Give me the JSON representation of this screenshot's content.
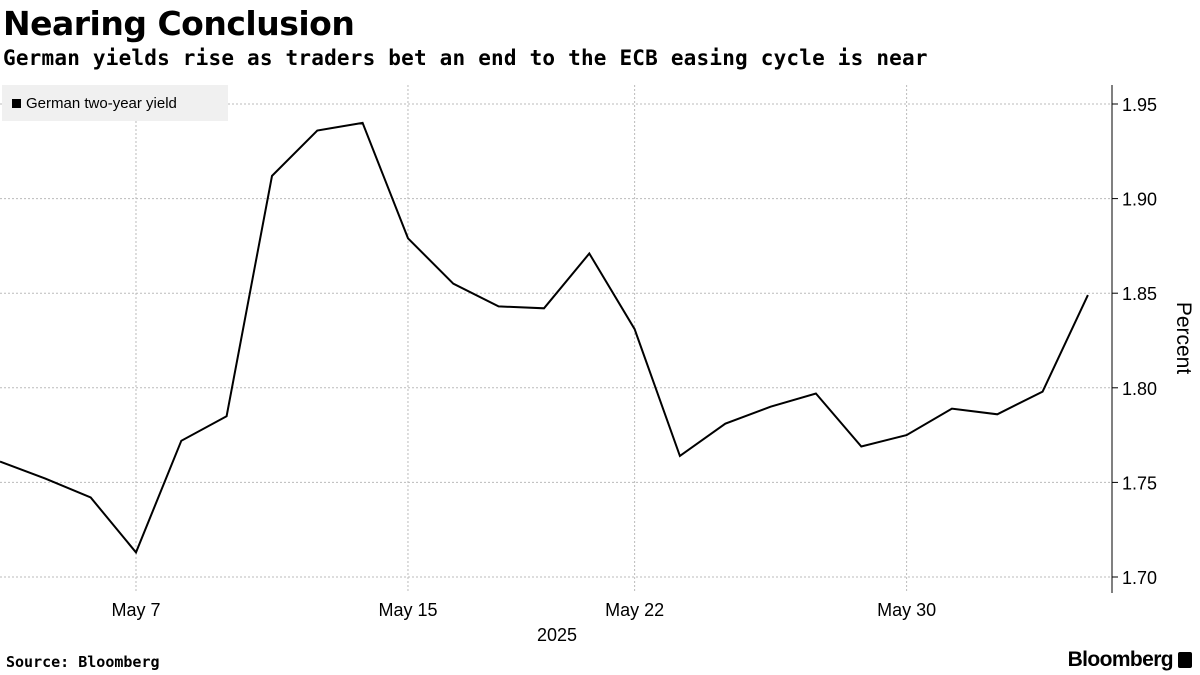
{
  "title": "Nearing Conclusion",
  "subtitle": "German yields rise as traders bet an end to the ECB easing cycle is near",
  "source": "Source: Bloomberg",
  "logo": "Bloomberg",
  "chart_data": {
    "type": "line",
    "title": "Nearing Conclusion",
    "subtitle": "German yields rise as traders bet an end to the ECB easing cycle is near",
    "xlabel": "2025",
    "ylabel": "Percent",
    "ylim": [
      1.695,
      1.965
    ],
    "yticks": [
      "1.70",
      "1.75",
      "1.80",
      "1.85",
      "1.90",
      "1.95"
    ],
    "xticks": [
      {
        "label": "May 7",
        "index": 3
      },
      {
        "label": "May 15",
        "index": 9
      },
      {
        "label": "May 22",
        "index": 14
      },
      {
        "label": "May 30",
        "index": 20
      }
    ],
    "grid": true,
    "legend_position": "top-left",
    "line_color": "#000000",
    "series": [
      {
        "name": "German two-year yield",
        "x": [
          "May 2",
          "May 5",
          "May 6",
          "May 7",
          "May 8",
          "May 9",
          "May 12",
          "May 13",
          "May 14",
          "May 15",
          "May 16",
          "May 19",
          "May 20",
          "May 21",
          "May 22",
          "May 23",
          "May 26",
          "May 27",
          "May 28",
          "May 29",
          "May 30",
          "Jun 2",
          "Jun 3",
          "Jun 4",
          "Jun 5"
        ],
        "values": [
          1.761,
          1.752,
          1.742,
          1.713,
          1.772,
          1.785,
          1.912,
          1.936,
          1.94,
          1.879,
          1.855,
          1.843,
          1.842,
          1.871,
          1.831,
          1.764,
          1.781,
          1.79,
          1.797,
          1.769,
          1.775,
          1.789,
          1.786,
          1.798,
          1.849
        ]
      }
    ]
  }
}
